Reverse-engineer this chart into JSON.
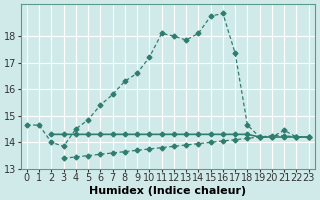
{
  "xlabel": "Humidex (Indice chaleur)",
  "ylabel": "",
  "bg_color": "#d0eaea",
  "grid_color": "#ffffff",
  "line_color": "#2e7d6e",
  "x": [
    0,
    1,
    2,
    3,
    4,
    5,
    6,
    7,
    8,
    9,
    10,
    11,
    12,
    13,
    14,
    15,
    16,
    17,
    18,
    19,
    20,
    21,
    22,
    23
  ],
  "line1": [
    14.65,
    14.65,
    14.0,
    13.85,
    14.5,
    14.85,
    15.4,
    15.8,
    16.3,
    16.6,
    17.2,
    18.1,
    18.0,
    17.85,
    18.1,
    18.75,
    18.85,
    17.35,
    14.65,
    14.2,
    14.2,
    14.45,
    14.2,
    14.2
  ],
  "line2": [
    null,
    null,
    14.3,
    14.3,
    14.3,
    14.3,
    14.3,
    14.3,
    14.3,
    14.3,
    14.3,
    14.3,
    14.3,
    14.3,
    14.3,
    14.3,
    14.3,
    14.3,
    14.3,
    14.2,
    14.2,
    14.2,
    14.2,
    14.2
  ],
  "line3": [
    null,
    null,
    null,
    13.4,
    13.45,
    13.5,
    13.55,
    13.6,
    13.65,
    13.7,
    13.75,
    13.8,
    13.85,
    13.9,
    13.95,
    14.0,
    14.05,
    14.1,
    14.15,
    14.2,
    14.25,
    14.25,
    14.2,
    14.2
  ],
  "ylim": [
    13.0,
    19.2
  ],
  "xlim": [
    -0.5,
    23.5
  ],
  "yticks": [
    13,
    14,
    15,
    16,
    17,
    18
  ],
  "xticks": [
    0,
    1,
    2,
    3,
    4,
    5,
    6,
    7,
    8,
    9,
    10,
    11,
    12,
    13,
    14,
    15,
    16,
    17,
    18,
    19,
    20,
    21,
    22,
    23
  ],
  "fontsize_ticks": 7,
  "fontsize_label": 8
}
